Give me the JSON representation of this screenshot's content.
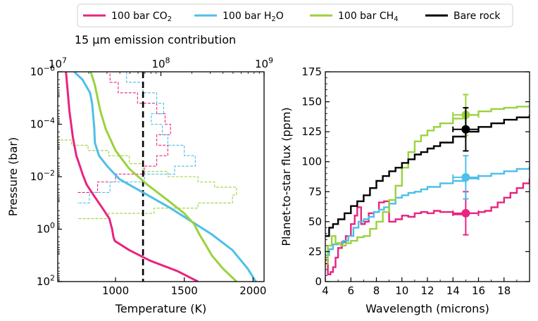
{
  "legend": {
    "placement": "top-center",
    "items": [
      {
        "label": "100 bar CO",
        "sub": "2",
        "color": "#e8247f"
      },
      {
        "label": "100 bar H",
        "sub": "2",
        "tail": "O",
        "color": "#4dbfe8"
      },
      {
        "label": "100 bar CH",
        "sub": "4",
        "color": "#9bd23e"
      },
      {
        "label": "Bare rock",
        "sub": "",
        "color": "#000000"
      }
    ]
  },
  "chart_data": [
    {
      "type": "line",
      "xlabel": "Temperature (K)",
      "ylabel": "Pressure (bar)",
      "xlim": [
        580,
        2080
      ],
      "ylim_log10": [
        2,
        -6
      ],
      "xticks": [
        "1000",
        "1500",
        "2000"
      ],
      "yticks": [
        {
          "base": "10",
          "exp": "−6",
          "v": -6
        },
        {
          "base": "10",
          "exp": "−4",
          "v": -4
        },
        {
          "base": "10",
          "exp": "−2",
          "v": -2
        },
        {
          "base": "10",
          "exp": "0",
          "v": 0
        },
        {
          "base": "10",
          "exp": "2",
          "v": 2
        }
      ],
      "top_axis": {
        "label": "15 μm emission contribution",
        "scale": "log",
        "xlim_log10": [
          7,
          9
        ],
        "ticks": [
          {
            "base": "10",
            "exp": "7",
            "v": 7
          },
          {
            "base": "10",
            "exp": "8",
            "v": 8
          },
          {
            "base": "10",
            "exp": "9",
            "v": 9
          }
        ]
      },
      "vline": {
        "x": 1200,
        "style": "dashed",
        "color": "#000000"
      },
      "series": [
        {
          "name": "100 bar CO2",
          "color": "#e8247f",
          "x": [
            640,
            665,
            690,
            715,
            735,
            760,
            790,
            840,
            905,
            955,
            975,
            985,
            990,
            995,
            1100,
            1250,
            1450,
            1600
          ],
          "log10p": [
            -6,
            -4.5,
            -3.5,
            -2.8,
            -2.5,
            -2.1,
            -1.7,
            -1.3,
            -0.8,
            -0.4,
            0,
            0.3,
            0.38,
            0.45,
            0.8,
            1.2,
            1.6,
            2
          ]
        },
        {
          "name": "100 bar H2O",
          "color": "#4dbfe8",
          "x": [
            700,
            760,
            815,
            830,
            838,
            845,
            850,
            880,
            940,
            1030,
            1200,
            1400,
            1550,
            1700,
            1850,
            1960,
            2020
          ],
          "log10p": [
            -6,
            -5.7,
            -5.2,
            -4.8,
            -4.3,
            -3.9,
            -3.3,
            -2.8,
            -2.4,
            -1.9,
            -1.4,
            -0.8,
            -0.3,
            0.2,
            0.8,
            1.5,
            2
          ]
        },
        {
          "name": "100 bar CH4",
          "color": "#9bd23e",
          "x": [
            820,
            850,
            870,
            890,
            930,
            1000,
            1100,
            1230,
            1380,
            1500,
            1570,
            1610,
            1650,
            1700,
            1780,
            1880
          ],
          "log10p": [
            -6,
            -5.5,
            -5,
            -4.5,
            -3.8,
            -3,
            -2.3,
            -1.7,
            -1.1,
            -0.6,
            -0.2,
            0.2,
            0.55,
            1,
            1.5,
            2
          ]
        }
      ],
      "contribution_functions": [
        {
          "name": "100 bar CO2",
          "color": "#e8247f",
          "x": [
            880,
            960,
            960,
            1020,
            1020,
            1160,
            1160,
            1300,
            1300,
            1360,
            1360,
            1400,
            1400,
            1300,
            1300,
            1380,
            1380,
            1300,
            1300,
            1210,
            1210,
            1000,
            1000,
            870,
            870,
            720
          ],
          "log10p": [
            -6,
            -6,
            -5.6,
            -5.6,
            -5.2,
            -5.2,
            -4.8,
            -4.8,
            -4.4,
            -4.4,
            -4,
            -4,
            -3.6,
            -3.6,
            -3.2,
            -3.2,
            -2.8,
            -2.8,
            -2.4,
            -2.4,
            -2.1,
            -2.1,
            -1.8,
            -1.8,
            -1.4,
            -1.4
          ]
        },
        {
          "name": "100 bar H2O",
          "color": "#4dbfe8",
          "x": [
            1020,
            1080,
            1080,
            1200,
            1200,
            1300,
            1300,
            1350,
            1350,
            1260,
            1260,
            1340,
            1340,
            1380,
            1380,
            1500,
            1500,
            1580,
            1580,
            1430,
            1430,
            1210,
            1210,
            960,
            960,
            810,
            810,
            720
          ],
          "log10p": [
            -6,
            -6,
            -5.6,
            -5.6,
            -5.2,
            -5.2,
            -4.8,
            -4.8,
            -4.4,
            -4.4,
            -4,
            -4,
            -3.6,
            -3.6,
            -3.2,
            -3.2,
            -2.8,
            -2.8,
            -2.4,
            -2.4,
            -2.1,
            -2.1,
            -1.8,
            -1.8,
            -1.4,
            -1.4,
            -1,
            -1
          ]
        },
        {
          "name": "100 bar CH4",
          "color": "#9bd23e",
          "x": [
            600,
            680,
            680,
            800,
            800,
            950,
            950,
            1100,
            1100,
            1200,
            1200,
            1380,
            1380,
            1600,
            1600,
            1720,
            1720,
            1880,
            1880,
            1850,
            1850,
            1600,
            1600,
            1280,
            1280,
            950,
            950,
            720
          ],
          "log10p": [
            -3.4,
            -3.4,
            -3.2,
            -3.2,
            -3,
            -3,
            -2.8,
            -2.8,
            -2.5,
            -2.5,
            -2.2,
            -2.2,
            -2,
            -2,
            -1.8,
            -1.8,
            -1.6,
            -1.6,
            -1.3,
            -1.3,
            -1,
            -1,
            -0.8,
            -0.8,
            -0.6,
            -0.6,
            -0.4,
            -0.4
          ]
        }
      ]
    },
    {
      "type": "line",
      "xlabel": "Wavelength (microns)",
      "ylabel": "Planet-to-star flux (ppm)",
      "xlim": [
        4,
        20
      ],
      "ylim": [
        0,
        175
      ],
      "xticks": [
        4,
        6,
        8,
        10,
        12,
        14,
        16,
        18
      ],
      "yticks": [
        0,
        25,
        50,
        75,
        100,
        125,
        150,
        175
      ],
      "step": true,
      "series": [
        {
          "name": "100 bar CO2",
          "color": "#e8247f",
          "x": [
            4.0,
            4.2,
            4.4,
            4.6,
            4.8,
            5.0,
            5.3,
            5.6,
            6.0,
            6.3,
            6.5,
            6.8,
            7.1,
            7.4,
            7.8,
            8.2,
            8.6,
            9.0,
            9.5,
            10.0,
            10.5,
            11.0,
            11.5,
            12.0,
            12.5,
            13.0,
            14.0,
            15.0,
            16.0,
            16.5,
            17.0,
            17.5,
            18.0,
            18.5,
            19.0,
            19.5,
            20.0
          ],
          "y": [
            18,
            6,
            8,
            12,
            20,
            28,
            33,
            38,
            48,
            55,
            62,
            48,
            50,
            57,
            58,
            66,
            67,
            50,
            52,
            55,
            54,
            57,
            58,
            57,
            59,
            58,
            56,
            57,
            58,
            59,
            62,
            66,
            70,
            74,
            78,
            82,
            86
          ]
        },
        {
          "name": "100 bar H2O",
          "color": "#4dbfe8",
          "x": [
            4.0,
            4.3,
            4.6,
            5.0,
            5.4,
            5.8,
            6.2,
            6.6,
            7.0,
            7.4,
            7.8,
            8.2,
            8.6,
            9.0,
            9.5,
            10.0,
            10.5,
            11.0,
            11.5,
            12.0,
            13.0,
            14.0,
            15.0,
            16.0,
            17.0,
            18.0,
            19.0,
            20.0
          ],
          "y": [
            22,
            27,
            31,
            32,
            34,
            38,
            45,
            50,
            52,
            54,
            58,
            60,
            62,
            65,
            70,
            72,
            74,
            75,
            77,
            79,
            82,
            84,
            86,
            88,
            90,
            92,
            94,
            96
          ]
        },
        {
          "name": "100 bar CH4",
          "color": "#9bd23e",
          "x": [
            4.0,
            4.2,
            4.5,
            4.8,
            5.2,
            5.6,
            6.0,
            6.5,
            7.0,
            7.5,
            8.0,
            8.5,
            9.0,
            9.5,
            10.0,
            10.5,
            11.0,
            11.5,
            12.0,
            12.5,
            13.0,
            14.0,
            15.0,
            16.0,
            17.0,
            18.0,
            19.0,
            20.0
          ],
          "y": [
            15,
            30,
            38,
            32,
            30,
            32,
            34,
            37,
            38,
            44,
            50,
            58,
            68,
            80,
            95,
            108,
            117,
            122,
            126,
            129,
            132,
            136,
            139,
            142,
            144,
            145,
            146,
            147
          ]
        },
        {
          "name": "Bare rock",
          "color": "#000000",
          "x": [
            4.0,
            4.3,
            4.6,
            5.0,
            5.5,
            6.0,
            6.5,
            7.0,
            7.5,
            8.0,
            8.5,
            9.0,
            9.5,
            10.0,
            10.5,
            11.0,
            11.5,
            12.0,
            12.5,
            13.0,
            14.0,
            15.0,
            16.0,
            17.0,
            18.0,
            19.0,
            20.0
          ],
          "y": [
            38,
            45,
            48,
            52,
            57,
            63,
            67,
            72,
            78,
            84,
            88,
            92,
            95,
            99,
            102,
            106,
            108,
            111,
            113,
            116,
            121,
            125,
            129,
            132,
            135,
            137,
            139
          ]
        }
      ],
      "points": [
        {
          "name": "100 bar CO2",
          "color": "#e8247f",
          "x": 15,
          "y": 57,
          "xerr": 1,
          "yerr": 18
        },
        {
          "name": "100 bar H2O",
          "color": "#4dbfe8",
          "x": 15,
          "y": 87,
          "xerr": 1,
          "yerr": 18
        },
        {
          "name": "100 bar CH4",
          "color": "#9bd23e",
          "x": 15,
          "y": 139,
          "xerr": 1,
          "yerr": 17
        },
        {
          "name": "Bare rock",
          "color": "#000000",
          "x": 15,
          "y": 127,
          "xerr": 1,
          "yerr": 18
        }
      ]
    }
  ]
}
